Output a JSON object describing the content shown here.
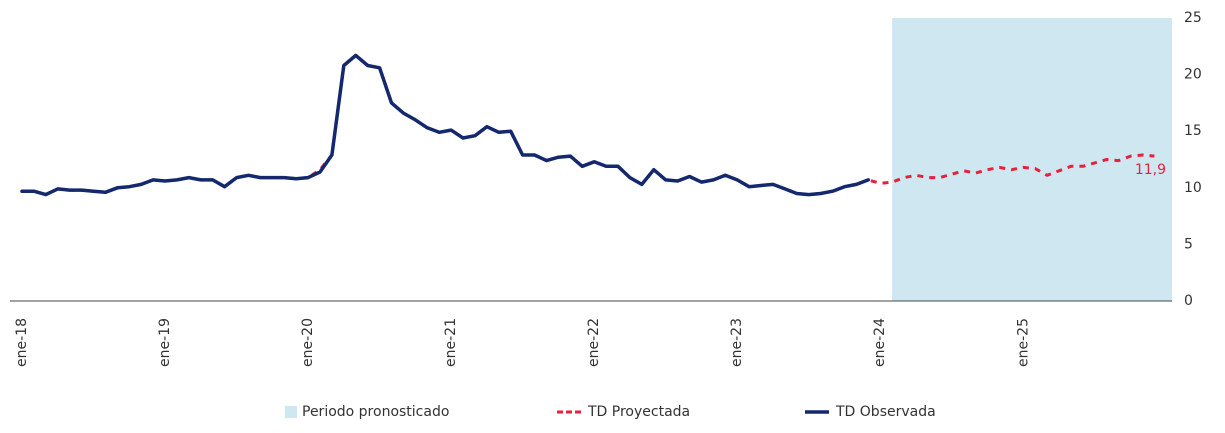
{
  "chart_data": {
    "type": "line",
    "categories": [
      "ene-18",
      null,
      null,
      null,
      null,
      null,
      null,
      null,
      null,
      null,
      null,
      null,
      "ene-19",
      null,
      null,
      null,
      null,
      null,
      null,
      null,
      null,
      null,
      null,
      null,
      "ene-20",
      null,
      null,
      null,
      null,
      null,
      null,
      null,
      null,
      null,
      null,
      null,
      "ene-21",
      null,
      null,
      null,
      null,
      null,
      null,
      null,
      null,
      null,
      null,
      null,
      "ene-22",
      null,
      null,
      null,
      null,
      null,
      null,
      null,
      null,
      null,
      null,
      null,
      "ene-23",
      null,
      null,
      null,
      null,
      null,
      null,
      null,
      null,
      null,
      null,
      null,
      "ene-24",
      null,
      null,
      null,
      null,
      null,
      null,
      null,
      null,
      null,
      null,
      null,
      "ene-25",
      null,
      null,
      null,
      null,
      null,
      null,
      null,
      null,
      null,
      null,
      null
    ],
    "forecast_region": {
      "name": "Periodo pronosticado",
      "from": "ene-24",
      "color": "#cfe7f1"
    },
    "series": [
      {
        "name": "TD Proyectada",
        "color": "#e8203a",
        "dashed": true,
        "values": [
          9.7,
          9.7,
          9.4,
          9.9,
          9.8,
          9.8,
          9.7,
          9.6,
          10.0,
          10.1,
          10.3,
          10.7,
          10.6,
          10.7,
          10.9,
          10.7,
          10.7,
          10.1,
          10.9,
          11.1,
          10.9,
          10.9,
          10.9,
          10.8,
          10.9,
          11.6,
          12.9,
          20.8,
          21.7,
          20.8,
          20.6,
          17.5,
          16.6,
          16.0,
          15.3,
          14.9,
          15.1,
          14.4,
          14.6,
          15.4,
          14.9,
          15.0,
          12.9,
          12.9,
          12.4,
          12.7,
          12.8,
          11.9,
          12.3,
          11.9,
          11.9,
          10.9,
          10.3,
          11.6,
          10.7,
          10.6,
          11.0,
          10.5,
          10.7,
          11.1,
          10.7,
          10.1,
          10.2,
          10.3,
          9.9,
          9.5,
          9.4,
          9.5,
          9.7,
          10.1,
          10.3,
          10.7,
          10.4,
          10.5,
          10.9,
          11.1,
          10.9,
          10.9,
          11.2,
          11.5,
          11.3,
          11.6,
          11.8,
          11.6,
          11.8,
          11.7,
          11.1,
          11.5,
          11.9,
          11.9,
          12.2,
          12.5,
          12.4,
          12.8,
          12.9,
          12.8
        ]
      },
      {
        "name": "TD Observada",
        "color": "#14286e",
        "values": [
          9.7,
          9.7,
          9.4,
          9.9,
          9.8,
          9.8,
          9.7,
          9.6,
          10.0,
          10.1,
          10.3,
          10.7,
          10.6,
          10.7,
          10.9,
          10.7,
          10.7,
          10.1,
          10.9,
          11.1,
          10.9,
          10.9,
          10.9,
          10.8,
          10.9,
          11.4,
          12.9,
          20.8,
          21.7,
          20.8,
          20.6,
          17.5,
          16.6,
          16.0,
          15.3,
          14.9,
          15.1,
          14.4,
          14.6,
          15.4,
          14.9,
          15.0,
          12.9,
          12.9,
          12.4,
          12.7,
          12.8,
          11.9,
          12.3,
          11.9,
          11.9,
          10.9,
          10.3,
          11.6,
          10.7,
          10.6,
          11.0,
          10.5,
          10.7,
          11.1,
          10.7,
          10.1,
          10.2,
          10.3,
          9.9,
          9.5,
          9.4,
          9.5,
          9.7,
          10.1,
          10.3,
          10.7,
          null,
          null,
          null,
          null,
          null,
          null,
          null,
          null,
          null,
          null,
          null,
          null,
          null,
          null,
          null,
          null,
          null,
          null,
          null,
          null,
          null,
          null,
          null,
          null
        ]
      }
    ],
    "annotation": "11,9",
    "annotation_color": "#e8203a",
    "ylim": [
      0,
      25
    ],
    "yticks": [
      0,
      5,
      10,
      15,
      20,
      25
    ],
    "grid": false,
    "legend": "bottom"
  }
}
